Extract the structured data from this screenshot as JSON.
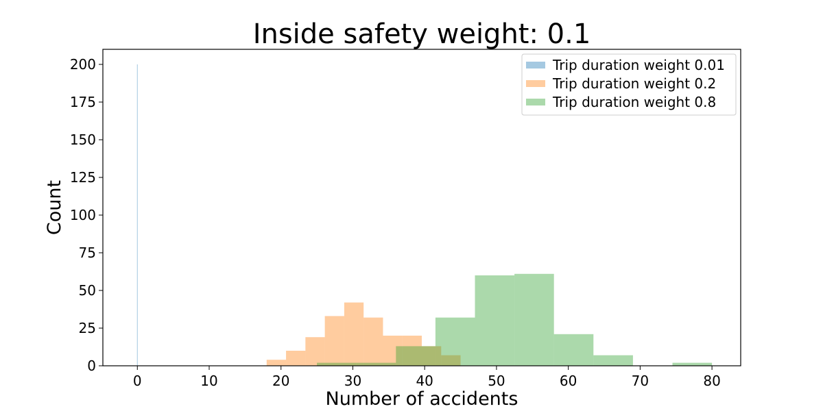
{
  "chart_data": {
    "type": "histogram",
    "title": "Inside safety weight: 0.1",
    "xlabel": "Number of accidents",
    "ylabel": "Count",
    "xlim": [
      -4.8,
      84
    ],
    "ylim": [
      0,
      210
    ],
    "x_ticks": [
      0,
      10,
      20,
      30,
      40,
      50,
      60,
      70,
      80
    ],
    "y_ticks": [
      0,
      25,
      50,
      75,
      100,
      125,
      150,
      175,
      200
    ],
    "grid": false,
    "legend_position": "top-right",
    "series": [
      {
        "name": "Trip duration weight 0.01",
        "color": "#1f77b4",
        "opacity": 0.4,
        "bins": [
          {
            "x0": -0.05,
            "x1": 0.05,
            "count": 200
          }
        ]
      },
      {
        "name": "Trip duration weight 0.2",
        "color": "#ff7f0e",
        "opacity": 0.4,
        "bins": [
          {
            "x0": 18.0,
            "x1": 20.7,
            "count": 4
          },
          {
            "x0": 20.7,
            "x1": 23.4,
            "count": 10
          },
          {
            "x0": 23.4,
            "x1": 26.1,
            "count": 19
          },
          {
            "x0": 26.1,
            "x1": 28.8,
            "count": 33
          },
          {
            "x0": 28.8,
            "x1": 31.5,
            "count": 42
          },
          {
            "x0": 31.5,
            "x1": 34.2,
            "count": 32
          },
          {
            "x0": 34.2,
            "x1": 36.9,
            "count": 20
          },
          {
            "x0": 36.9,
            "x1": 39.6,
            "count": 20
          },
          {
            "x0": 39.6,
            "x1": 42.3,
            "count": 13
          },
          {
            "x0": 42.3,
            "x1": 45.0,
            "count": 7
          }
        ]
      },
      {
        "name": "Trip duration weight 0.8",
        "color": "#2ca02c",
        "opacity": 0.4,
        "bins": [
          {
            "x0": 25.0,
            "x1": 30.5,
            "count": 2
          },
          {
            "x0": 30.5,
            "x1": 36.0,
            "count": 2
          },
          {
            "x0": 36.0,
            "x1": 41.5,
            "count": 13
          },
          {
            "x0": 41.5,
            "x1": 47.0,
            "count": 32
          },
          {
            "x0": 47.0,
            "x1": 52.5,
            "count": 60
          },
          {
            "x0": 52.5,
            "x1": 58.0,
            "count": 61
          },
          {
            "x0": 58.0,
            "x1": 63.5,
            "count": 21
          },
          {
            "x0": 63.5,
            "x1": 69.0,
            "count": 7
          },
          {
            "x0": 69.0,
            "x1": 74.5,
            "count": 0
          },
          {
            "x0": 74.5,
            "x1": 80.0,
            "count": 2
          }
        ]
      }
    ]
  }
}
